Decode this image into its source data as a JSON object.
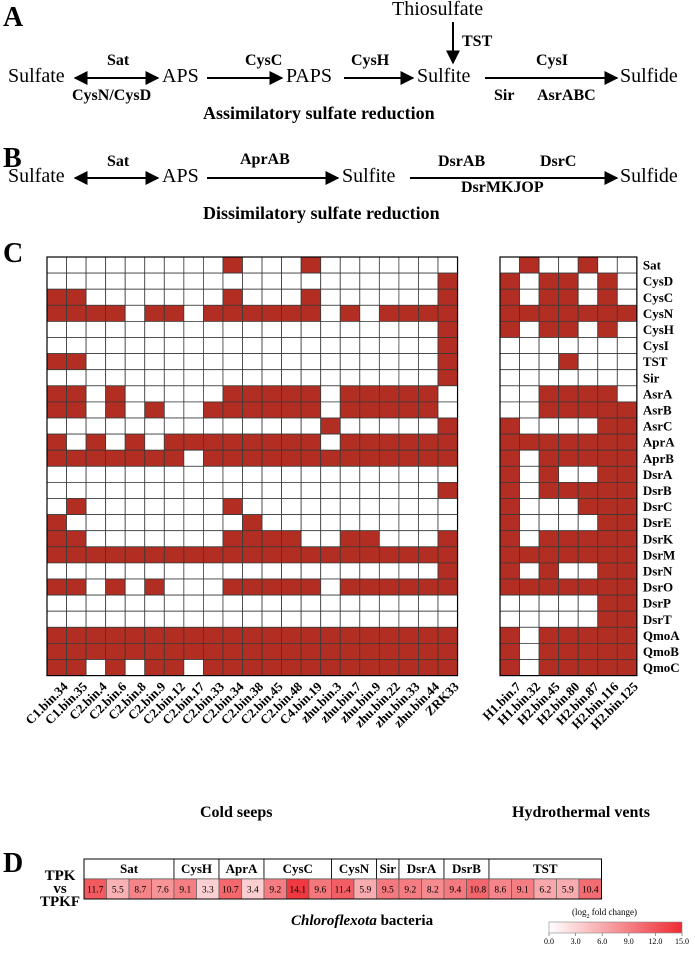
{
  "panelA": {
    "letter": "A",
    "title": "Assimilatory sulfate reduction",
    "nodes": {
      "sulfate": "Sulfate",
      "aps": "APS",
      "paps": "PAPS",
      "sulfite": "Sulfite",
      "sulfide": "Sulfide",
      "thiosulfate": "Thiosulfate"
    },
    "enzymes": {
      "sat": "Sat",
      "cysnd": "CysN/CysD",
      "cysc": "CysC",
      "cysh": "CysH",
      "cysi": "CysI",
      "sir": "Sir",
      "asr": "AsrABC",
      "tst": "TST"
    }
  },
  "panelB": {
    "letter": "B",
    "title": "Dissimilatory sulfate reduction",
    "nodes": {
      "sulfate": "Sulfate",
      "aps": "APS",
      "sulfite": "Sulfite",
      "sulfide": "Sulfide"
    },
    "enzymes": {
      "sat": "Sat",
      "aprab": "AprAB",
      "dsrab": "DsrAB",
      "dsrc": "DsrC",
      "dsrmkjop": "DsrMKJOP"
    }
  },
  "panelC": {
    "letter": "C",
    "fill_color": "#b22d22",
    "genes": [
      "Sat",
      "CysD",
      "CysC",
      "CysN",
      "CysH",
      "CysI",
      "TST",
      "Sir",
      "AsrA",
      "AsrB",
      "AsrC",
      "AprA",
      "AprB",
      "DsrA",
      "DsrB",
      "DsrC",
      "DsrE",
      "DsrK",
      "DsrM",
      "DsrN",
      "DsrO",
      "DsrP",
      "DsrT",
      "QmoA",
      "QmoB",
      "QmoC"
    ],
    "cold_seeps": {
      "title": "Cold seeps",
      "bins": [
        "C1.bin.34",
        "C1.bin.35",
        "C2.bin.4",
        "C2.bin.6",
        "C2.bin.8",
        "C2.bin.9",
        "C2.bin.12",
        "C2.bin.17",
        "C2.bin.33",
        "C2.bin.34",
        "C2.bin.38",
        "C2.bin.45",
        "C2.bin.48",
        "C4.bin.19",
        "zhu.bin.3",
        "zhu.bin.7",
        "zhu.bin.9",
        "zhu.bin.22",
        "zhu.bin.33",
        "zhu.bin.44",
        "ZRK33"
      ],
      "matrix": [
        [
          0,
          0,
          0,
          0,
          0,
          0,
          0,
          0,
          0,
          1,
          0,
          0,
          0,
          1,
          0,
          0,
          0,
          0,
          0,
          0,
          0
        ],
        [
          0,
          0,
          0,
          0,
          0,
          0,
          0,
          0,
          0,
          0,
          0,
          0,
          0,
          0,
          0,
          0,
          0,
          0,
          0,
          0,
          1
        ],
        [
          1,
          1,
          0,
          0,
          0,
          0,
          0,
          0,
          0,
          1,
          0,
          0,
          0,
          1,
          0,
          0,
          0,
          0,
          0,
          0,
          1
        ],
        [
          1,
          1,
          1,
          1,
          0,
          1,
          1,
          0,
          1,
          1,
          1,
          1,
          1,
          1,
          0,
          1,
          0,
          1,
          1,
          1,
          1
        ],
        [
          0,
          0,
          0,
          0,
          0,
          0,
          0,
          0,
          0,
          0,
          0,
          0,
          0,
          0,
          0,
          0,
          0,
          0,
          0,
          0,
          1
        ],
        [
          0,
          0,
          0,
          0,
          0,
          0,
          0,
          0,
          0,
          0,
          0,
          0,
          0,
          0,
          0,
          0,
          0,
          0,
          0,
          0,
          1
        ],
        [
          1,
          1,
          0,
          0,
          0,
          0,
          0,
          0,
          0,
          0,
          0,
          0,
          0,
          0,
          0,
          0,
          0,
          0,
          0,
          0,
          1
        ],
        [
          0,
          0,
          0,
          0,
          0,
          0,
          0,
          0,
          0,
          0,
          0,
          0,
          0,
          0,
          0,
          0,
          0,
          0,
          0,
          0,
          1
        ],
        [
          1,
          1,
          0,
          1,
          0,
          0,
          0,
          0,
          0,
          1,
          1,
          1,
          1,
          1,
          0,
          1,
          1,
          1,
          1,
          1,
          0
        ],
        [
          1,
          1,
          0,
          1,
          0,
          1,
          0,
          0,
          1,
          1,
          1,
          1,
          1,
          1,
          0,
          1,
          1,
          1,
          1,
          1,
          0
        ],
        [
          0,
          0,
          0,
          0,
          0,
          0,
          0,
          0,
          0,
          0,
          0,
          0,
          0,
          0,
          1,
          0,
          0,
          0,
          0,
          0,
          1
        ],
        [
          1,
          0,
          1,
          0,
          1,
          0,
          1,
          1,
          1,
          1,
          1,
          1,
          1,
          1,
          0,
          1,
          1,
          1,
          1,
          1,
          1
        ],
        [
          1,
          1,
          1,
          1,
          1,
          1,
          1,
          0,
          1,
          1,
          1,
          1,
          1,
          1,
          1,
          1,
          1,
          1,
          1,
          1,
          1
        ],
        [
          0,
          0,
          0,
          0,
          0,
          0,
          0,
          0,
          0,
          0,
          0,
          0,
          0,
          0,
          0,
          0,
          0,
          0,
          0,
          0,
          0
        ],
        [
          0,
          0,
          0,
          0,
          0,
          0,
          0,
          0,
          0,
          0,
          0,
          0,
          0,
          0,
          0,
          0,
          0,
          0,
          0,
          0,
          1
        ],
        [
          0,
          1,
          0,
          0,
          0,
          0,
          0,
          0,
          0,
          1,
          0,
          0,
          0,
          0,
          0,
          0,
          0,
          0,
          0,
          0,
          0
        ],
        [
          1,
          0,
          0,
          0,
          0,
          0,
          0,
          0,
          0,
          0,
          1,
          0,
          0,
          0,
          0,
          0,
          0,
          0,
          0,
          0,
          0
        ],
        [
          1,
          1,
          0,
          0,
          0,
          0,
          0,
          0,
          0,
          1,
          1,
          1,
          1,
          0,
          0,
          1,
          1,
          0,
          0,
          0,
          1
        ],
        [
          1,
          1,
          1,
          1,
          1,
          1,
          1,
          1,
          1,
          1,
          1,
          1,
          1,
          1,
          1,
          1,
          1,
          1,
          1,
          1,
          1
        ],
        [
          0,
          0,
          0,
          0,
          0,
          0,
          0,
          0,
          0,
          0,
          0,
          0,
          0,
          0,
          0,
          0,
          0,
          0,
          0,
          0,
          1
        ],
        [
          1,
          1,
          0,
          1,
          0,
          1,
          0,
          0,
          0,
          1,
          1,
          1,
          1,
          1,
          0,
          1,
          1,
          1,
          1,
          1,
          1
        ],
        [
          0,
          0,
          0,
          0,
          0,
          0,
          0,
          0,
          0,
          0,
          0,
          0,
          0,
          0,
          0,
          0,
          0,
          0,
          0,
          0,
          0
        ],
        [
          0,
          0,
          0,
          0,
          0,
          0,
          0,
          0,
          0,
          0,
          0,
          0,
          0,
          0,
          0,
          0,
          0,
          0,
          0,
          0,
          0
        ],
        [
          1,
          1,
          1,
          1,
          1,
          1,
          1,
          1,
          1,
          1,
          1,
          1,
          1,
          1,
          1,
          1,
          1,
          1,
          1,
          1,
          1
        ],
        [
          1,
          1,
          1,
          1,
          1,
          1,
          1,
          1,
          1,
          1,
          1,
          1,
          1,
          1,
          1,
          1,
          1,
          1,
          1,
          1,
          1
        ],
        [
          1,
          1,
          0,
          1,
          0,
          1,
          1,
          0,
          1,
          1,
          1,
          1,
          1,
          1,
          1,
          1,
          1,
          1,
          1,
          1,
          1
        ]
      ]
    },
    "hydrothermal_vents": {
      "title": "Hydrothermal vents",
      "bins": [
        "H1.bin.7",
        "H1.bin.32",
        "H2.bin.45",
        "H2.bin.80",
        "H2.bin.87",
        "H2.bin.116",
        "H2.bin.125"
      ],
      "matrix": [
        [
          0,
          1,
          0,
          0,
          1,
          0,
          0
        ],
        [
          1,
          0,
          1,
          1,
          0,
          1,
          0
        ],
        [
          1,
          0,
          1,
          1,
          0,
          1,
          0
        ],
        [
          1,
          1,
          1,
          1,
          1,
          1,
          1
        ],
        [
          1,
          0,
          1,
          1,
          0,
          1,
          0
        ],
        [
          0,
          0,
          0,
          0,
          0,
          0,
          0
        ],
        [
          0,
          0,
          0,
          1,
          0,
          0,
          0
        ],
        [
          0,
          0,
          0,
          0,
          0,
          0,
          0
        ],
        [
          0,
          0,
          1,
          1,
          1,
          1,
          0
        ],
        [
          0,
          0,
          1,
          1,
          1,
          1,
          1
        ],
        [
          1,
          0,
          0,
          0,
          0,
          1,
          1
        ],
        [
          1,
          1,
          1,
          1,
          1,
          1,
          1
        ],
        [
          1,
          0,
          1,
          1,
          1,
          1,
          1
        ],
        [
          1,
          0,
          1,
          0,
          0,
          1,
          1
        ],
        [
          1,
          0,
          1,
          1,
          1,
          1,
          1
        ],
        [
          1,
          0,
          0,
          0,
          1,
          1,
          1
        ],
        [
          1,
          0,
          0,
          0,
          0,
          1,
          1
        ],
        [
          1,
          0,
          1,
          1,
          1,
          1,
          1
        ],
        [
          1,
          1,
          1,
          1,
          1,
          1,
          1
        ],
        [
          1,
          0,
          1,
          0,
          0,
          1,
          1
        ],
        [
          1,
          1,
          1,
          1,
          1,
          1,
          1
        ],
        [
          0,
          0,
          0,
          0,
          0,
          1,
          1
        ],
        [
          0,
          0,
          0,
          0,
          0,
          1,
          1
        ],
        [
          1,
          0,
          1,
          1,
          1,
          1,
          1
        ],
        [
          1,
          0,
          1,
          1,
          1,
          1,
          1
        ],
        [
          1,
          0,
          1,
          1,
          1,
          1,
          1
        ]
      ]
    }
  },
  "panelD": {
    "letter": "D",
    "row_label_top": "TPK",
    "row_label_mid": "vs",
    "row_label_bot": "TPKF",
    "groups": [
      {
        "name": "Sat",
        "count": 4
      },
      {
        "name": "CysH",
        "count": 2
      },
      {
        "name": "AprA",
        "count": 2
      },
      {
        "name": "CysC",
        "count": 3
      },
      {
        "name": "CysN",
        "count": 2
      },
      {
        "name": "Sir",
        "count": 1
      },
      {
        "name": "DsrA",
        "count": 2
      },
      {
        "name": "DsrB",
        "count": 2
      },
      {
        "name": "TST",
        "count": 5
      }
    ],
    "values": [
      11.7,
      5.5,
      8.7,
      7.6,
      9.1,
      3.3,
      10.7,
      3.4,
      9.2,
      14.1,
      9.6,
      11.4,
      5.9,
      9.5,
      9.2,
      8.2,
      9.4,
      10.8,
      8.6,
      9.1,
      6.2,
      5.9,
      10.4
    ],
    "caption_italic": "Chloroflexota",
    "caption_rest": " bacteria",
    "legend": {
      "title": "(log",
      "title_sub": "2",
      "title_end": " fold change)",
      "ticks": [
        "0.0",
        "3.0",
        "6.0",
        "9.0",
        "12.0",
        "15.0"
      ],
      "min": 0,
      "max": 15,
      "color_low": "#ffffff",
      "color_high": "#ee2b33"
    }
  }
}
